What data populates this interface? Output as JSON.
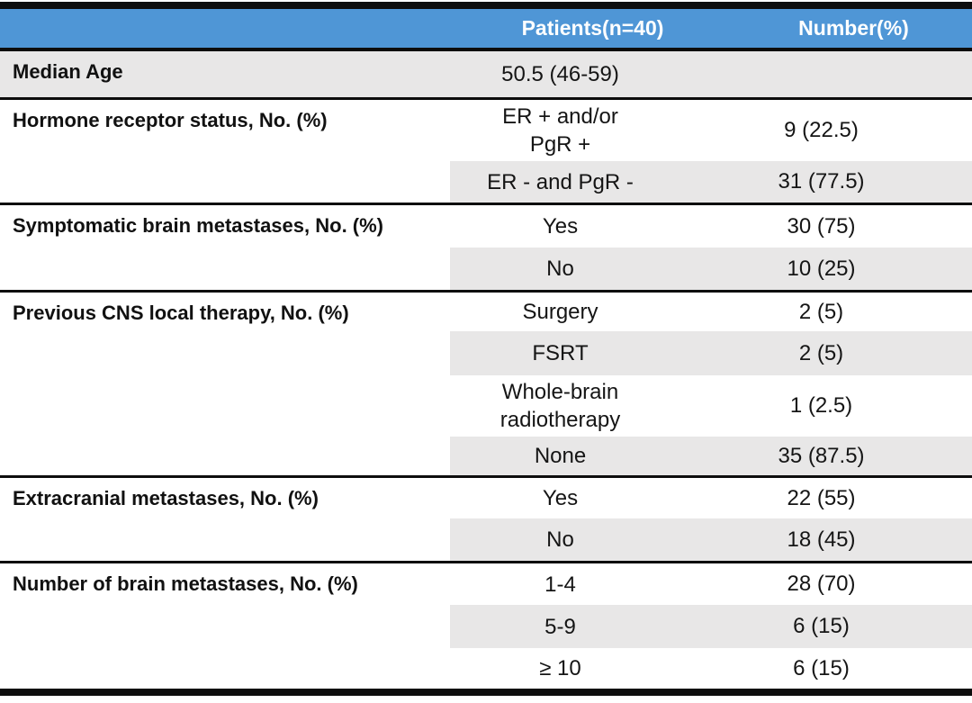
{
  "table": {
    "colors": {
      "header_bg": "#4F96D6",
      "header_text": "#FFFFFF",
      "band_bg": "#E8E7E7",
      "rule": "#0D0D0D"
    },
    "columns": [
      "",
      "Patients(n=40)",
      "Number(%)"
    ],
    "sections": [
      {
        "label": "Median Age",
        "rows": [
          {
            "patients": "50.5 (46-59)",
            "number": ""
          }
        ]
      },
      {
        "label": "Hormone receptor status, No. (%)",
        "rows": [
          {
            "patients": "ER + and/or\nPgR +",
            "number": "9 (22.5)"
          },
          {
            "patients": "ER - and PgR -",
            "number": "31 (77.5)"
          }
        ]
      },
      {
        "label": "Symptomatic brain metastases, No. (%)",
        "rows": [
          {
            "patients": "Yes",
            "number": "30 (75)"
          },
          {
            "patients": "No",
            "number": "10 (25)"
          }
        ]
      },
      {
        "label": "Previous CNS local therapy, No. (%)",
        "rows": [
          {
            "patients": "Surgery",
            "number": "2 (5)"
          },
          {
            "patients": "FSRT",
            "number": "2 (5)"
          },
          {
            "patients": "Whole-brain\nradiotherapy",
            "number": "1 (2.5)"
          },
          {
            "patients": "None",
            "number": "35 (87.5)"
          }
        ]
      },
      {
        "label": "Extracranial metastases, No. (%)",
        "rows": [
          {
            "patients": "Yes",
            "number": "22 (55)"
          },
          {
            "patients": "No",
            "number": "18 (45)"
          }
        ]
      },
      {
        "label": "Number of brain metastases, No. (%)",
        "rows": [
          {
            "patients": "1-4",
            "number": "28 (70)"
          },
          {
            "patients": "5-9",
            "number": "6 (15)"
          },
          {
            "patients": "≥ 10",
            "number": "6 (15)"
          }
        ]
      }
    ]
  }
}
